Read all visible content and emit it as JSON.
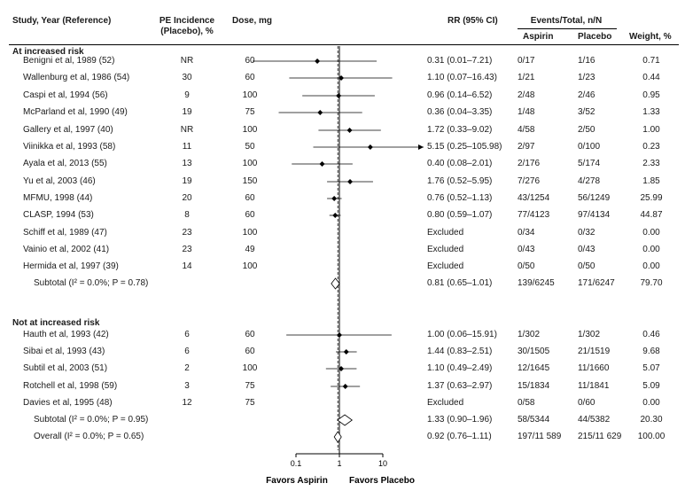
{
  "headers": {
    "study": "Study, Year (Reference)",
    "pe_line1": "PE Incidence",
    "pe_line2": "(Placebo), %",
    "dose": "Dose, mg",
    "rr": "RR (95% CI)",
    "events": "Events/Total, n/N",
    "aspirin": "Aspirin",
    "placebo": "Placebo",
    "weight": "Weight, %"
  },
  "groups": [
    {
      "label": "At increased risk"
    },
    {
      "label": "Not at increased risk"
    }
  ],
  "chart_data": {
    "type": "forest",
    "xscale": "log",
    "xlim": [
      0.1,
      10
    ],
    "xticks": [
      "0.1",
      "1",
      "10"
    ],
    "reference_line": 1,
    "pooled_line": 0.92,
    "xlabel_left": "Favors Aspirin",
    "xlabel_right": "Favors Placebo",
    "rows": [
      {
        "study": "Benigni et al, 1989 (52)",
        "pe": "NR",
        "dose": "60",
        "rr_text": "0.31 (0.01–7.21)",
        "asp": "0/17",
        "plc": "1/16",
        "weight": "0.71",
        "rr": 0.31,
        "lo": 0.01,
        "hi": 7.21
      },
      {
        "study": "Wallenburg et al, 1986 (54)",
        "pe": "30",
        "dose": "60",
        "rr_text": "1.10 (0.07–16.43)",
        "asp": "1/21",
        "plc": "1/23",
        "weight": "0.44",
        "rr": 1.1,
        "lo": 0.07,
        "hi": 16.43
      },
      {
        "study": "Caspi et al, 1994 (56)",
        "pe": "9",
        "dose": "100",
        "rr_text": "0.96 (0.14–6.52)",
        "asp": "2/48",
        "plc": "2/46",
        "weight": "0.95",
        "rr": 0.96,
        "lo": 0.14,
        "hi": 6.52
      },
      {
        "study": "McParland et al, 1990 (49)",
        "pe": "19",
        "dose": "75",
        "rr_text": "0.36 (0.04–3.35)",
        "asp": "1/48",
        "plc": "3/52",
        "weight": "1.33",
        "rr": 0.36,
        "lo": 0.04,
        "hi": 3.35
      },
      {
        "study": "Gallery et al, 1997 (40)",
        "pe": "NR",
        "dose": "100",
        "rr_text": "1.72 (0.33–9.02)",
        "asp": "4/58",
        "plc": "2/50",
        "weight": "1.00",
        "rr": 1.72,
        "lo": 0.33,
        "hi": 9.02
      },
      {
        "study": "Viinikka et al, 1993 (58)",
        "pe": "11",
        "dose": "50",
        "rr_text": "5.15 (0.25–105.98)",
        "asp": "2/97",
        "plc": "0/100",
        "weight": "0.23",
        "rr": 5.15,
        "lo": 0.25,
        "hi": 105.98
      },
      {
        "study": "Ayala et al, 2013 (55)",
        "pe": "13",
        "dose": "100",
        "rr_text": "0.40 (0.08–2.01)",
        "asp": "2/176",
        "plc": "5/174",
        "weight": "2.33",
        "rr": 0.4,
        "lo": 0.08,
        "hi": 2.01
      },
      {
        "study": "Yu et al, 2003 (46)",
        "pe": "19",
        "dose": "150",
        "rr_text": "1.76 (0.52–5.95)",
        "asp": "7/276",
        "plc": "4/278",
        "weight": "1.85",
        "rr": 1.76,
        "lo": 0.52,
        "hi": 5.95
      },
      {
        "study": "MFMU, 1998 (44)",
        "pe": "20",
        "dose": "60",
        "rr_text": "0.76 (0.52–1.13)",
        "asp": "43/1254",
        "plc": "56/1249",
        "weight": "25.99",
        "rr": 0.76,
        "lo": 0.52,
        "hi": 1.13
      },
      {
        "study": "CLASP, 1994 (53)",
        "pe": "8",
        "dose": "60",
        "rr_text": "0.80 (0.59–1.07)",
        "asp": "77/4123",
        "plc": "97/4134",
        "weight": "44.87",
        "rr": 0.8,
        "lo": 0.59,
        "hi": 1.07
      },
      {
        "study": "Schiff et al, 1989 (47)",
        "pe": "23",
        "dose": "100",
        "rr_text": "Excluded",
        "asp": "0/34",
        "plc": "0/32",
        "weight": "0.00"
      },
      {
        "study": "Vainio et al, 2002 (41)",
        "pe": "23",
        "dose": "49",
        "rr_text": "Excluded",
        "asp": "0/43",
        "plc": "0/43",
        "weight": "0.00"
      },
      {
        "study": "Hermida et al, 1997 (39)",
        "pe": "14",
        "dose": "100",
        "rr_text": "Excluded",
        "asp": "0/50",
        "plc": "0/50",
        "weight": "0.00"
      },
      {
        "study": "Subtotal (I² = 0.0%; P = 0.78)",
        "subtotal": true,
        "rr_text": "0.81 (0.65–1.01)",
        "asp": "139/6245",
        "plc": "171/6247",
        "weight": "79.70",
        "rr": 0.81,
        "lo": 0.65,
        "hi": 1.01
      },
      {
        "study": "Hauth et al, 1993 (42)",
        "pe": "6",
        "dose": "60",
        "rr_text": "1.00 (0.06–15.91)",
        "asp": "1/302",
        "plc": "1/302",
        "weight": "0.46",
        "rr": 1.0,
        "lo": 0.06,
        "hi": 15.91
      },
      {
        "study": "Sibai et al, 1993 (43)",
        "pe": "6",
        "dose": "60",
        "rr_text": "1.44 (0.83–2.51)",
        "asp": "30/1505",
        "plc": "21/1519",
        "weight": "9.68",
        "rr": 1.44,
        "lo": 0.83,
        "hi": 2.51
      },
      {
        "study": "Subtil et al, 2003 (51)",
        "pe": "2",
        "dose": "100",
        "rr_text": "1.10 (0.49–2.49)",
        "asp": "12/1645",
        "plc": "11/1660",
        "weight": "5.07",
        "rr": 1.1,
        "lo": 0.49,
        "hi": 2.49
      },
      {
        "study": "Rotchell et al, 1998 (59)",
        "pe": "3",
        "dose": "75",
        "rr_text": "1.37 (0.63–2.97)",
        "asp": "15/1834",
        "plc": "11/1841",
        "weight": "5.09",
        "rr": 1.37,
        "lo": 0.63,
        "hi": 2.97
      },
      {
        "study": "Davies et al, 1995 (48)",
        "pe": "12",
        "dose": "75",
        "rr_text": "Excluded",
        "asp": "0/58",
        "plc": "0/60",
        "weight": "0.00"
      },
      {
        "study": "Subtotal (I² = 0.0%; P = 0.95)",
        "subtotal": true,
        "rr_text": "1.33 (0.90–1.96)",
        "asp": "58/5344",
        "plc": "44/5382",
        "weight": "20.30",
        "rr": 1.33,
        "lo": 0.9,
        "hi": 1.96
      },
      {
        "study": "Overall (I² = 0.0%; P = 0.65)",
        "subtotal": true,
        "overall": true,
        "rr_text": "0.92 (0.76–1.11)",
        "asp": "197/11 589",
        "plc": "215/11 629",
        "weight": "100.00",
        "rr": 0.92,
        "lo": 0.76,
        "hi": 1.11
      }
    ]
  }
}
